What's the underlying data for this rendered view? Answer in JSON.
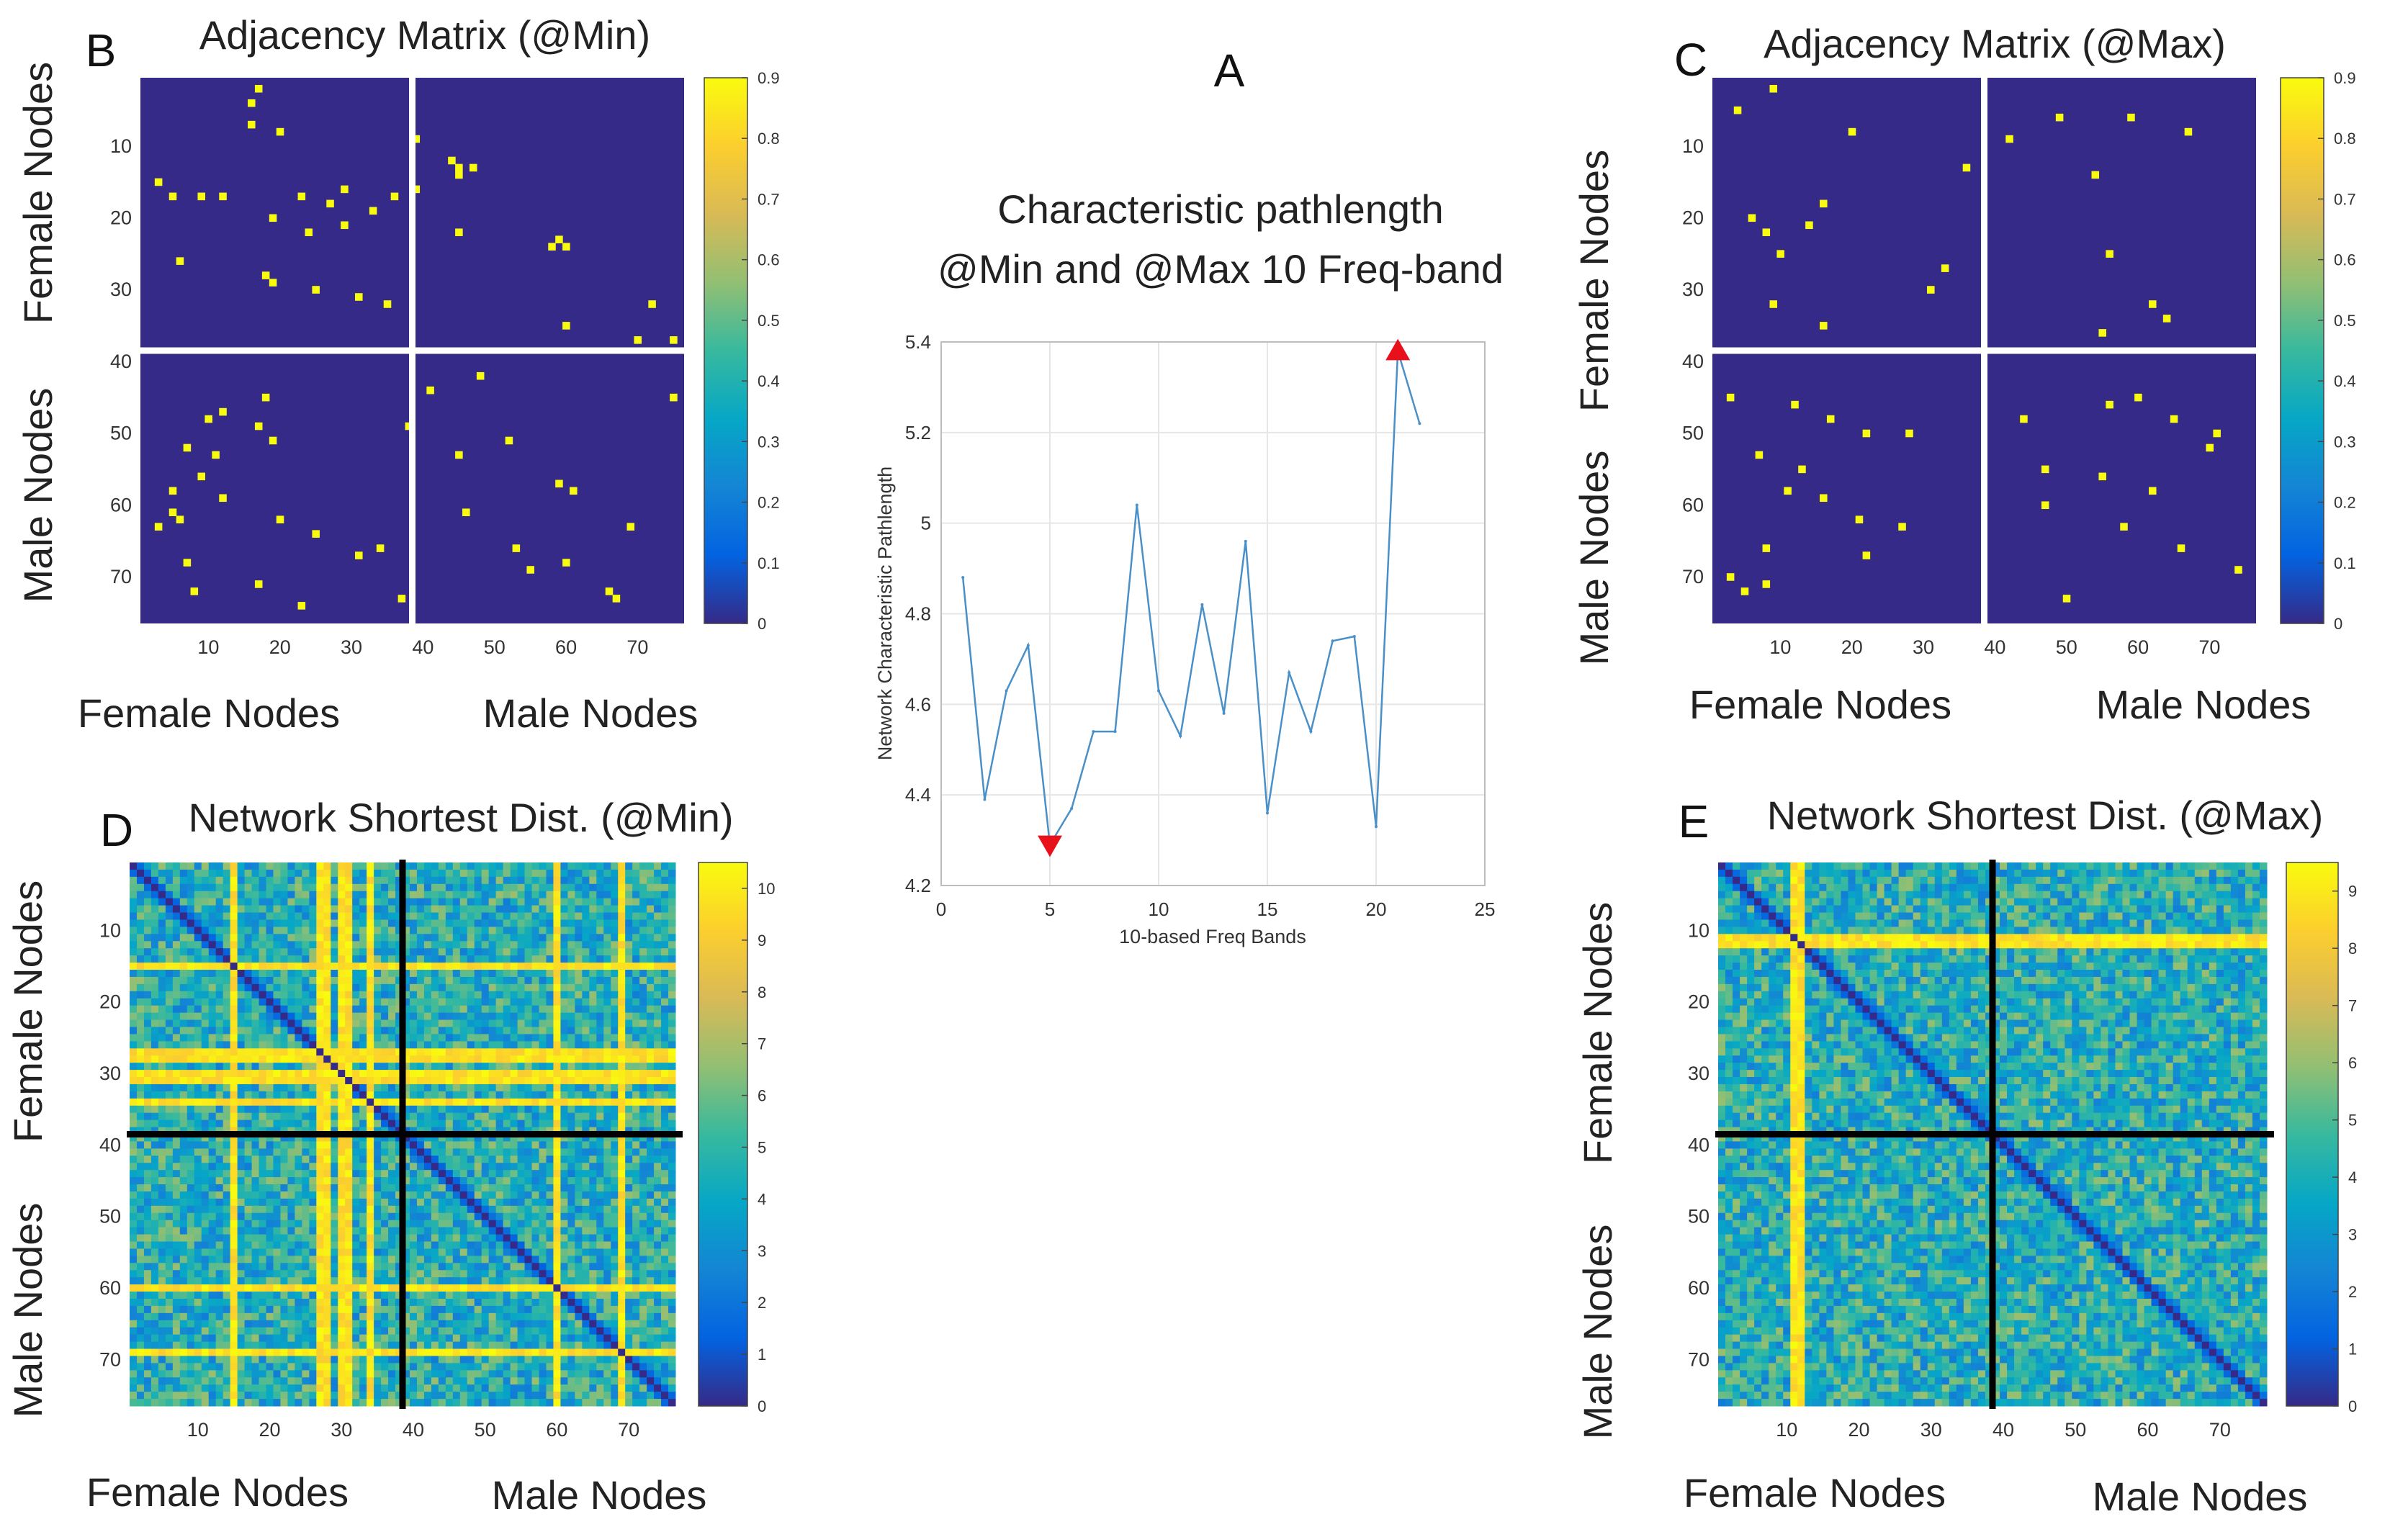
{
  "colors": {
    "matrix_background": "#352a87",
    "edge_color": "#f9fb0e",
    "line_color": "#4a90c8",
    "marker_color": "#e8101a",
    "grid_color": "#e6e6e6",
    "parula": [
      "#352a87",
      "#0363e1",
      "#1485d4",
      "#06a7c6",
      "#38b99e",
      "#92bf73",
      "#d9ba56",
      "#fcce2e",
      "#f9fb0e"
    ]
  },
  "chart_data": [
    {
      "id": "A",
      "type": "line",
      "panel_letter": "A",
      "title_lines": [
        "Characteristic pathlength",
        "@Min and @Max 10 Freq-band"
      ],
      "xlabel": "10-based Freq Bands",
      "ylabel": "Network Characteristic Pathlength",
      "xlim": [
        0,
        25
      ],
      "ylim": [
        4.2,
        5.4
      ],
      "xticks": [
        "0",
        "5",
        "10",
        "15",
        "20",
        "25"
      ],
      "yticks": [
        "4.2",
        "4.4",
        "4.6",
        "4.8",
        "5",
        "5.2",
        "5.4"
      ],
      "grid": true,
      "series": [
        {
          "name": "Characteristic pathlength",
          "x": [
            1,
            2,
            3,
            4,
            5,
            6,
            7,
            8,
            9,
            10,
            11,
            12,
            13,
            14,
            15,
            16,
            17,
            18,
            19,
            20,
            21,
            22
          ],
          "y": [
            4.88,
            4.39,
            4.63,
            4.73,
            4.29,
            4.37,
            4.54,
            4.54,
            5.04,
            4.63,
            4.53,
            4.82,
            4.58,
            4.96,
            4.36,
            4.67,
            4.54,
            4.74,
            4.75,
            4.33,
            5.38,
            5.22
          ]
        }
      ],
      "markers": [
        {
          "name": "min",
          "x": 5,
          "y": 4.29,
          "shape": "triangle-down"
        },
        {
          "name": "max",
          "x": 21,
          "y": 5.38,
          "shape": "triangle-up"
        }
      ]
    },
    {
      "id": "B",
      "type": "heatmap",
      "panel_letter": "B",
      "title": "Adjacency Matrix (@Min)",
      "size": 76,
      "divider_at": 38.5,
      "divider_color": "white",
      "ticks": [
        "10",
        "20",
        "30",
        "40",
        "50",
        "60",
        "70"
      ],
      "colorbar": {
        "ticks": [
          "0",
          "0.1",
          "0.2",
          "0.3",
          "0.4",
          "0.5",
          "0.6",
          "0.7",
          "0.8",
          "0.9"
        ],
        "min": 0,
        "max": 0.9
      },
      "xlabels": [
        "Female Nodes",
        "Male Nodes"
      ],
      "ylabels": [
        "Female Nodes",
        "Male Nodes"
      ],
      "value_of_edges": 0.9,
      "edges": [
        [
          4,
          16
        ],
        [
          2,
          17
        ],
        [
          7,
          16
        ],
        [
          8,
          20
        ],
        [
          9,
          39
        ],
        [
          15,
          3
        ],
        [
          12,
          44
        ],
        [
          13,
          45
        ],
        [
          14,
          45
        ],
        [
          13,
          47
        ],
        [
          17,
          5
        ],
        [
          17,
          9
        ],
        [
          17,
          12
        ],
        [
          17,
          23
        ],
        [
          18,
          27
        ],
        [
          16,
          39
        ],
        [
          20,
          19
        ],
        [
          16,
          29
        ],
        [
          17,
          36
        ],
        [
          19,
          33
        ],
        [
          21,
          29
        ],
        [
          22,
          24
        ],
        [
          22,
          45
        ],
        [
          23,
          59
        ],
        [
          24,
          58
        ],
        [
          24,
          60
        ],
        [
          26,
          6
        ],
        [
          28,
          18
        ],
        [
          29,
          19
        ],
        [
          30,
          25
        ],
        [
          31,
          31
        ],
        [
          32,
          35
        ],
        [
          35,
          60
        ],
        [
          32,
          72
        ],
        [
          37,
          70
        ],
        [
          37,
          75
        ],
        [
          45,
          18
        ],
        [
          47,
          12
        ],
        [
          48,
          10
        ],
        [
          49,
          17
        ],
        [
          51,
          19
        ],
        [
          52,
          7
        ],
        [
          53,
          11
        ],
        [
          56,
          9
        ],
        [
          58,
          5
        ],
        [
          59,
          12
        ],
        [
          61,
          5
        ],
        [
          62,
          6
        ],
        [
          62,
          20
        ],
        [
          63,
          3
        ],
        [
          64,
          25
        ],
        [
          66,
          34
        ],
        [
          67,
          31
        ],
        [
          68,
          7
        ],
        [
          71,
          17
        ],
        [
          72,
          8
        ],
        [
          73,
          37
        ],
        [
          74,
          23
        ],
        [
          45,
          75
        ],
        [
          57,
          59
        ],
        [
          68,
          60
        ],
        [
          72,
          66
        ],
        [
          73,
          67
        ],
        [
          53,
          45
        ],
        [
          49,
          38
        ],
        [
          61,
          46
        ],
        [
          42,
          48
        ],
        [
          51,
          52
        ],
        [
          66,
          53
        ],
        [
          58,
          61
        ],
        [
          63,
          69
        ],
        [
          69,
          55
        ],
        [
          44,
          41
        ]
      ]
    },
    {
      "id": "C",
      "type": "heatmap",
      "panel_letter": "C",
      "title": "Adjacency Matrix (@Max)",
      "size": 76,
      "divider_at": 38.5,
      "divider_color": "white",
      "ticks": [
        "10",
        "20",
        "30",
        "40",
        "50",
        "60",
        "70"
      ],
      "colorbar": {
        "ticks": [
          "0",
          "0.1",
          "0.2",
          "0.3",
          "0.4",
          "0.5",
          "0.6",
          "0.7",
          "0.8",
          "0.9"
        ],
        "min": 0,
        "max": 0.9
      },
      "xlabels": [
        "Female Nodes",
        "Male Nodes"
      ],
      "ylabels": [
        "Female Nodes",
        "Male Nodes"
      ],
      "value_of_edges": 0.9,
      "edges": [
        [
          5,
          4
        ],
        [
          2,
          9
        ],
        [
          8,
          20
        ],
        [
          9,
          42
        ],
        [
          13,
          36
        ],
        [
          6,
          49
        ],
        [
          14,
          54
        ],
        [
          6,
          59
        ],
        [
          8,
          67
        ],
        [
          20,
          6
        ],
        [
          22,
          8
        ],
        [
          25,
          10
        ],
        [
          18,
          16
        ],
        [
          21,
          14
        ],
        [
          25,
          56
        ],
        [
          27,
          33
        ],
        [
          30,
          31
        ],
        [
          32,
          9
        ],
        [
          35,
          16
        ],
        [
          36,
          55
        ],
        [
          32,
          62
        ],
        [
          34,
          64
        ],
        [
          45,
          3
        ],
        [
          46,
          12
        ],
        [
          48,
          17
        ],
        [
          50,
          22
        ],
        [
          50,
          28
        ],
        [
          53,
          7
        ],
        [
          55,
          13
        ],
        [
          58,
          11
        ],
        [
          59,
          16
        ],
        [
          62,
          21
        ],
        [
          63,
          27
        ],
        [
          66,
          8
        ],
        [
          67,
          22
        ],
        [
          70,
          3
        ],
        [
          71,
          8
        ],
        [
          72,
          5
        ],
        [
          45,
          60
        ],
        [
          48,
          65
        ],
        [
          52,
          70
        ],
        [
          56,
          55
        ],
        [
          60,
          47
        ],
        [
          63,
          58
        ],
        [
          66,
          66
        ],
        [
          69,
          74
        ],
        [
          73,
          50
        ],
        [
          48,
          44
        ],
        [
          46,
          56
        ],
        [
          50,
          71
        ],
        [
          55,
          47
        ],
        [
          58,
          62
        ]
      ]
    },
    {
      "id": "D",
      "type": "heatmap",
      "panel_letter": "D",
      "title": "Network Shortest Dist. (@Min)",
      "size": 76,
      "divider_at": 38.5,
      "divider_color": "black",
      "ticks": [
        "10",
        "20",
        "30",
        "40",
        "50",
        "60",
        "70"
      ],
      "colorbar": {
        "ticks": [
          "0",
          "1",
          "2",
          "3",
          "4",
          "5",
          "6",
          "7",
          "8",
          "9",
          "10"
        ],
        "min": 0,
        "max": 10.5
      },
      "xlabels": [
        "Female Nodes",
        "Male Nodes"
      ],
      "ylabels": [
        "Female Nodes",
        "Male Nodes"
      ],
      "value_range": [
        0,
        10.5
      ],
      "high_nodes": [
        15,
        27,
        28,
        30,
        31,
        34,
        60,
        69
      ]
    },
    {
      "id": "E",
      "type": "heatmap",
      "panel_letter": "E",
      "title": "Network Shortest Dist. (@Max)",
      "size": 76,
      "divider_at": 38.5,
      "divider_color": "black",
      "ticks": [
        "10",
        "20",
        "30",
        "40",
        "50",
        "60",
        "70"
      ],
      "colorbar": {
        "ticks": [
          "0",
          "1",
          "2",
          "3",
          "4",
          "5",
          "6",
          "7",
          "8",
          "9"
        ],
        "min": 0,
        "max": 9.5
      },
      "xlabels": [
        "Female Nodes",
        "Male Nodes"
      ],
      "ylabels": [
        "Female Nodes",
        "Male Nodes"
      ],
      "value_range": [
        0,
        9.5
      ],
      "high_nodes": [
        11,
        12
      ]
    }
  ]
}
